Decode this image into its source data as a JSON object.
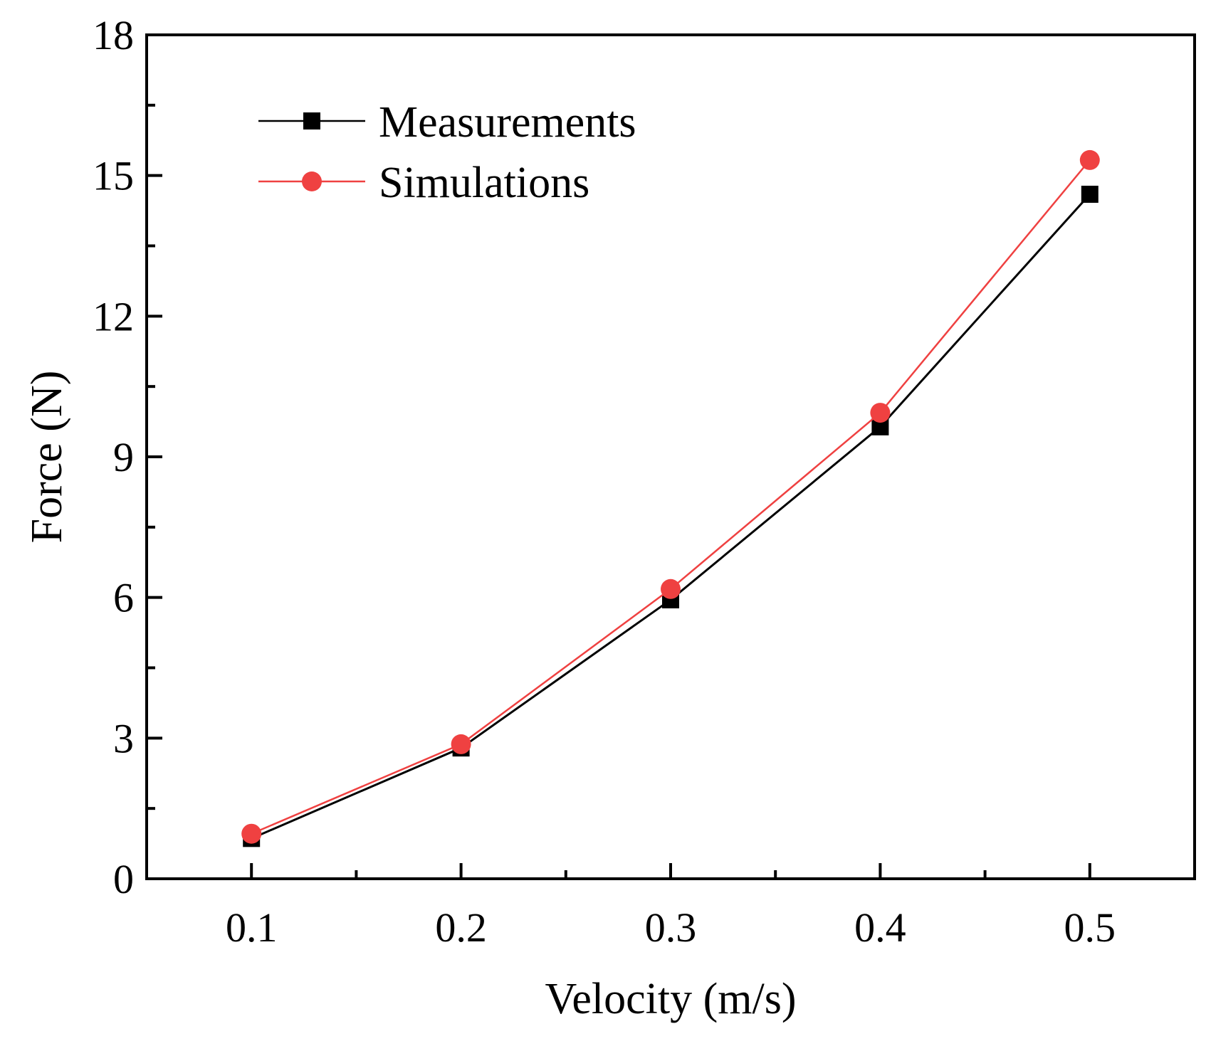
{
  "chart_data": {
    "type": "line",
    "title": "",
    "xlabel": "Velocity (m/s)",
    "ylabel": "Force (N)",
    "xlim": [
      0.05,
      0.55
    ],
    "ylim": [
      0,
      18
    ],
    "xticks": [
      0.1,
      0.2,
      0.3,
      0.4,
      0.5
    ],
    "xtick_labels": [
      "0.1",
      "0.2",
      "0.3",
      "0.4",
      "0.5"
    ],
    "yticks": [
      0,
      3,
      6,
      9,
      12,
      15,
      18
    ],
    "ytick_labels": [
      "0",
      "3",
      "6",
      "9",
      "12",
      "15",
      "18"
    ],
    "grid": false,
    "legend_position": "top-left",
    "x": [
      0.1,
      0.2,
      0.3,
      0.4,
      0.5
    ],
    "series": [
      {
        "name": "Measurements",
        "marker": "square",
        "color": "#000000",
        "values": [
          0.86,
          2.79,
          5.95,
          9.64,
          14.6
        ]
      },
      {
        "name": "Simulations",
        "marker": "circle",
        "color": "#ef4141",
        "values": [
          0.96,
          2.87,
          6.18,
          9.94,
          15.33
        ]
      }
    ]
  }
}
